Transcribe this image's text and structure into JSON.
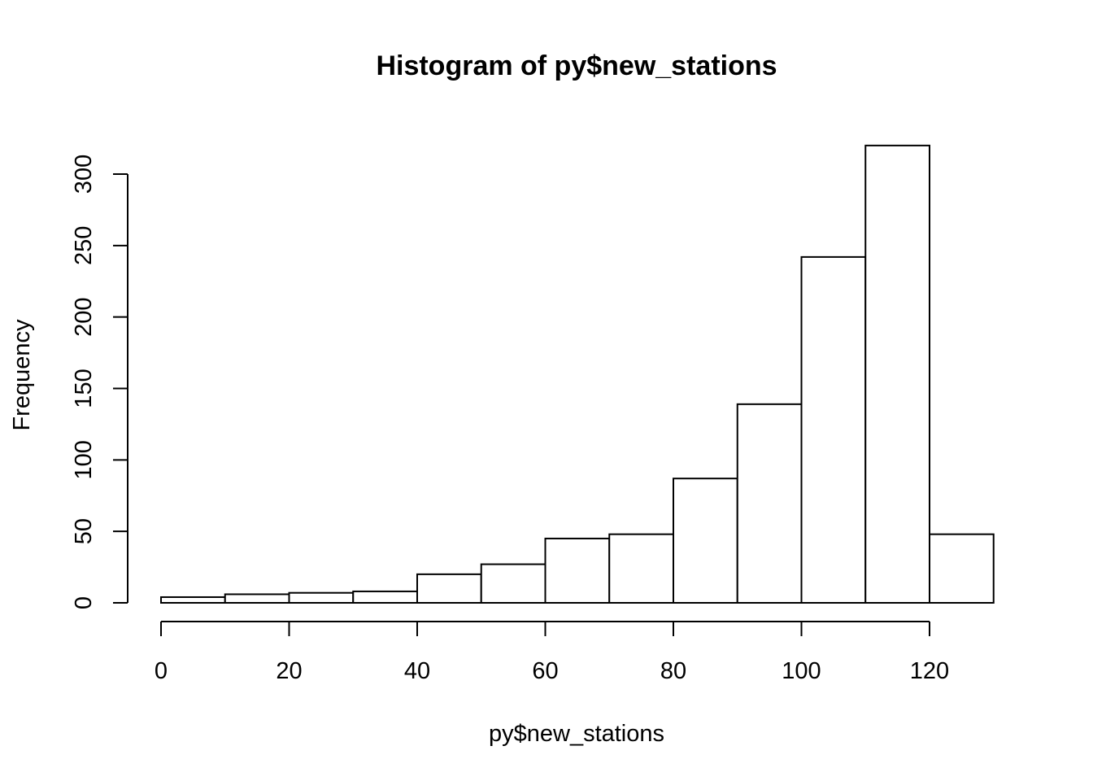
{
  "chart_data": {
    "type": "bar",
    "subtype": "histogram",
    "title": "Histogram of py$new_stations",
    "xlabel": "py$new_stations",
    "ylabel": "Frequency",
    "bins": [
      {
        "start": 0,
        "end": 10,
        "count": 4
      },
      {
        "start": 10,
        "end": 20,
        "count": 6
      },
      {
        "start": 20,
        "end": 30,
        "count": 7
      },
      {
        "start": 30,
        "end": 40,
        "count": 8
      },
      {
        "start": 40,
        "end": 50,
        "count": 20
      },
      {
        "start": 50,
        "end": 60,
        "count": 27
      },
      {
        "start": 60,
        "end": 70,
        "count": 45
      },
      {
        "start": 70,
        "end": 80,
        "count": 48
      },
      {
        "start": 80,
        "end": 90,
        "count": 87
      },
      {
        "start": 90,
        "end": 100,
        "count": 139
      },
      {
        "start": 100,
        "end": 110,
        "count": 242
      },
      {
        "start": 110,
        "end": 120,
        "count": 320
      },
      {
        "start": 120,
        "end": 130,
        "count": 48
      }
    ],
    "xlim": [
      0,
      130
    ],
    "ylim": [
      0,
      320
    ],
    "xticks": [
      0,
      20,
      40,
      60,
      80,
      100,
      120
    ],
    "yticks": [
      0,
      50,
      100,
      150,
      200,
      250,
      300
    ],
    "grid": false,
    "bar_fill": "#ffffff",
    "bar_stroke": "#000000"
  }
}
